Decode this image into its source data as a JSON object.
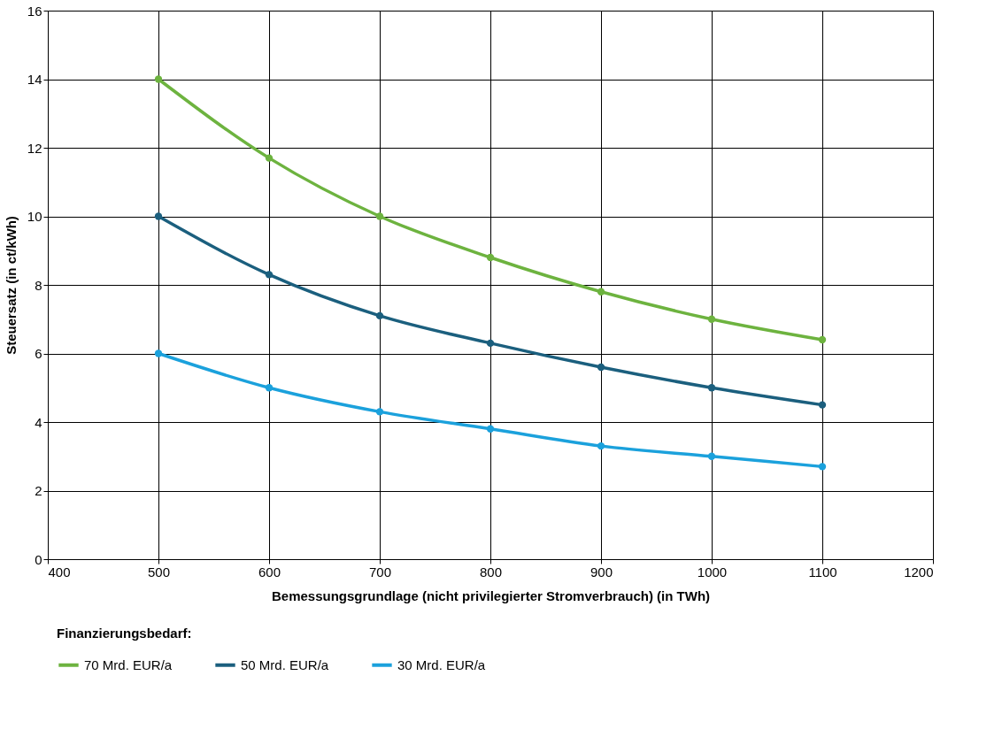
{
  "chart_data": {
    "type": "line",
    "xlabel": "Bemessungsgrundlage  (nicht privilegierter Stromverbrauch) (in TWh)",
    "ylabel": "Steuersatz (in ct/kWh)",
    "legend_title": "Finanzierungsbedarf:",
    "x": [
      500,
      600,
      700,
      800,
      900,
      1000,
      1100
    ],
    "series": [
      {
        "name": "70 Mrd. EUR/a",
        "color": "#6db33f",
        "values": [
          14,
          11.7,
          10,
          8.8,
          7.8,
          7,
          6.4
        ]
      },
      {
        "name": "50 Mrd. EUR/a",
        "color": "#1b5f7e",
        "values": [
          10,
          8.3,
          7.1,
          6.3,
          5.6,
          5,
          4.5
        ]
      },
      {
        "name": "30 Mrd. EUR/a",
        "color": "#1ba1dc",
        "values": [
          6,
          5,
          4.3,
          3.8,
          3.3,
          3,
          2.7
        ]
      }
    ],
    "xlim": [
      400,
      1200
    ],
    "xticks": [
      400,
      500,
      600,
      700,
      800,
      900,
      1000,
      1100,
      1200
    ],
    "ylim": [
      0,
      16
    ],
    "yticks": [
      0,
      2,
      4,
      6,
      8,
      10,
      12,
      14,
      16
    ],
    "grid": true,
    "legend": "bottom",
    "marker": "circle",
    "line_style": "solid"
  }
}
